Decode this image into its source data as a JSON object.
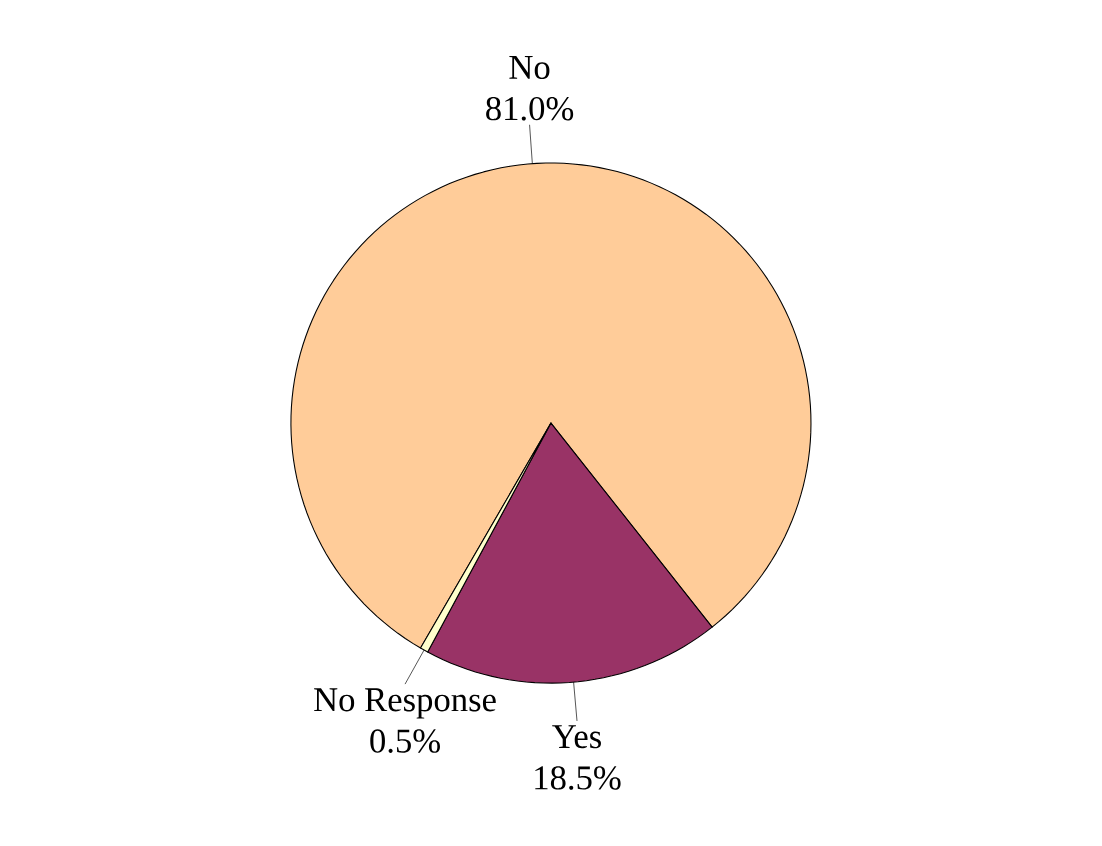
{
  "chart_data": {
    "type": "pie",
    "categories": [
      "No",
      "Yes",
      "No Response"
    ],
    "values": [
      81.0,
      18.5,
      0.5
    ],
    "value_labels": [
      "81.0%",
      "18.5%",
      "0.5%"
    ],
    "colors": [
      "#ffcc99",
      "#993366",
      "#ffffcc"
    ]
  }
}
